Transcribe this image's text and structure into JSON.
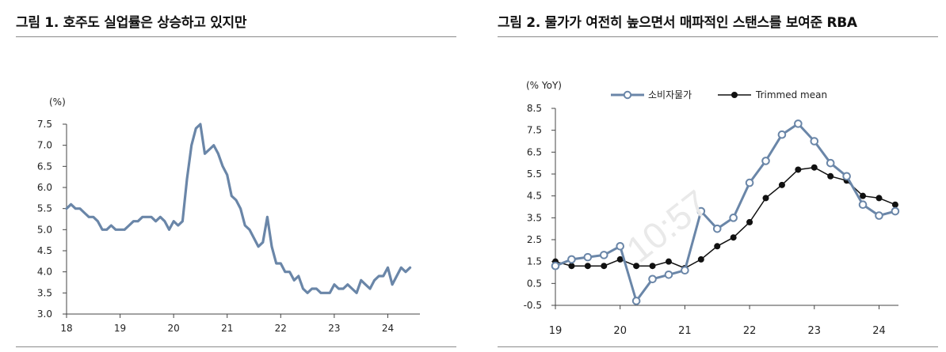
{
  "figures": [
    {
      "title": "그림 1. 호주도 실업률은 상승하고 있지만"
    },
    {
      "title": "그림 2. 물가가 여전히 높으면서 매파적인 스탠스를 보여준 RBA"
    }
  ],
  "watermark": "10:57",
  "colors": {
    "steel_blue": "#6a86a8",
    "black": "#111111",
    "axis": "#444444"
  },
  "chart_data": [
    {
      "type": "line",
      "title": "그림 1. 호주도 실업률은 상승하고 있지만",
      "unit_label": "(%)",
      "ylim": [
        3.0,
        7.5
      ],
      "yticks": [
        "3.0",
        "3.5",
        "4.0",
        "4.5",
        "5.0",
        "5.5",
        "6.0",
        "6.5",
        "7.0",
        "7.5"
      ],
      "xlim": [
        18,
        24.6
      ],
      "xticks": [
        "18",
        "19",
        "20",
        "21",
        "22",
        "23",
        "24"
      ],
      "grid": false,
      "series": [
        {
          "x": [
            18.0,
            18.083,
            18.167,
            18.25,
            18.333,
            18.417,
            18.5,
            18.583,
            18.667,
            18.75,
            18.833,
            18.917,
            19.0,
            19.083,
            19.167,
            19.25,
            19.333,
            19.417,
            19.5,
            19.583,
            19.667,
            19.75,
            19.833,
            19.917,
            20.0,
            20.083,
            20.167,
            20.25,
            20.333,
            20.417,
            20.5,
            20.583,
            20.667,
            20.75,
            20.833,
            20.917,
            21.0,
            21.083,
            21.167,
            21.25,
            21.333,
            21.417,
            21.5,
            21.583,
            21.667,
            21.75,
            21.833,
            21.917,
            22.0,
            22.083,
            22.167,
            22.25,
            22.333,
            22.417,
            22.5,
            22.583,
            22.667,
            22.75,
            22.833,
            22.917,
            23.0,
            23.083,
            23.167,
            23.25,
            23.333,
            23.417,
            23.5,
            23.583,
            23.667,
            23.75,
            23.833,
            23.917,
            24.0,
            24.083,
            24.167,
            24.25,
            24.333,
            24.417
          ],
          "y": [
            5.5,
            5.6,
            5.5,
            5.5,
            5.4,
            5.3,
            5.3,
            5.2,
            5.0,
            5.0,
            5.1,
            5.0,
            5.0,
            5.0,
            5.1,
            5.2,
            5.2,
            5.3,
            5.3,
            5.3,
            5.2,
            5.3,
            5.2,
            5.0,
            5.2,
            5.1,
            5.2,
            6.2,
            7.0,
            7.4,
            7.5,
            6.8,
            6.9,
            7.0,
            6.8,
            6.5,
            6.3,
            5.8,
            5.7,
            5.5,
            5.1,
            5.0,
            4.8,
            4.6,
            4.7,
            5.3,
            4.6,
            4.2,
            4.2,
            4.0,
            4.0,
            3.8,
            3.9,
            3.6,
            3.5,
            3.6,
            3.6,
            3.5,
            3.5,
            3.5,
            3.7,
            3.6,
            3.6,
            3.7,
            3.6,
            3.5,
            3.8,
            3.7,
            3.6,
            3.8,
            3.9,
            3.9,
            4.1,
            3.7,
            3.9,
            4.1,
            4.0,
            4.1
          ]
        }
      ]
    },
    {
      "type": "line",
      "title": "그림 2. 물가가 여전히 높으면서 매파적인 스탠스를 보여준 RBA",
      "unit_label": "(% YoY)",
      "ylim": [
        -0.5,
        8.5
      ],
      "yticks": [
        "8.5",
        "7.5",
        "6.5",
        "5.5",
        "4.5",
        "3.5",
        "2.5",
        "1.5",
        "0.5",
        "-0.5"
      ],
      "xlim": [
        19,
        24.3
      ],
      "xticks": [
        "19",
        "20",
        "21",
        "22",
        "23",
        "24"
      ],
      "grid": false,
      "legend_position": "top",
      "series": [
        {
          "name": "소비자물가",
          "style": "hollow-circle",
          "x": [
            19.0,
            19.25,
            19.5,
            19.75,
            20.0,
            20.25,
            20.5,
            20.75,
            21.0,
            21.25,
            21.5,
            21.75,
            22.0,
            22.25,
            22.5,
            22.75,
            23.0,
            23.25,
            23.5,
            23.75,
            24.0,
            24.25
          ],
          "y": [
            1.3,
            1.6,
            1.7,
            1.8,
            2.2,
            -0.3,
            0.7,
            0.9,
            1.1,
            3.8,
            3.0,
            3.5,
            5.1,
            6.1,
            7.3,
            7.8,
            7.0,
            6.0,
            5.4,
            4.1,
            3.6,
            3.8
          ]
        },
        {
          "name": "Trimmed mean",
          "style": "filled-dot",
          "x": [
            19.0,
            19.25,
            19.5,
            19.75,
            20.0,
            20.25,
            20.5,
            20.75,
            21.0,
            21.25,
            21.5,
            21.75,
            22.0,
            22.25,
            22.5,
            22.75,
            23.0,
            23.25,
            23.5,
            23.75,
            24.0,
            24.25
          ],
          "y": [
            1.5,
            1.3,
            1.3,
            1.3,
            1.6,
            1.3,
            1.3,
            1.5,
            1.2,
            1.6,
            2.2,
            2.6,
            3.3,
            4.4,
            5.0,
            5.7,
            5.8,
            5.4,
            5.2,
            4.5,
            4.4,
            4.1
          ]
        }
      ]
    }
  ]
}
